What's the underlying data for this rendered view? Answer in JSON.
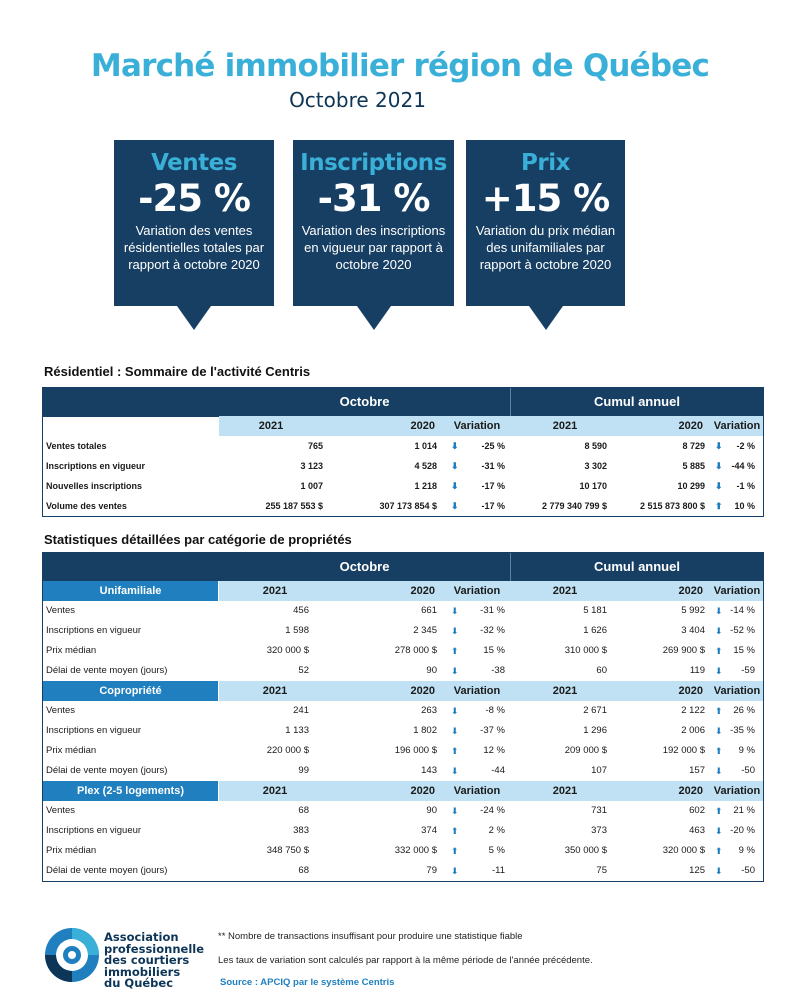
{
  "header": {
    "title": "Marché immobilier région de Québec",
    "subtitle": "Octobre 2021"
  },
  "cards": [
    {
      "title": "Ventes",
      "value": "-25 %",
      "description": "Variation des ventes résidentielles totales par rapport à octobre 2020"
    },
    {
      "title": "Inscriptions",
      "value": "-31 %",
      "description": "Variation des inscriptions en vigueur par rapport à octobre 2020"
    },
    {
      "title": "Prix",
      "value": "+15 %",
      "description": "Variation du prix médian des unifamiliales par rapport à octobre 2020"
    }
  ],
  "summary": {
    "section_title": "Résidentiel : Sommaire de l'activité Centris",
    "group_month": "Octobre",
    "group_ytd": "Cumul annuel",
    "col_2021": "2021",
    "col_2020": "2020",
    "col_var": "Variation",
    "rows": [
      {
        "label": "Ventes totales",
        "m2021": "765",
        "m2020": "1 014",
        "mvar": "-25 %",
        "y2021": "8 590",
        "y2020": "8 729",
        "yvar": "-2 %"
      },
      {
        "label": "Inscriptions en vigueur",
        "m2021": "3 123",
        "m2020": "4 528",
        "mvar": "-31 %",
        "y2021": "3 302",
        "y2020": "5 885",
        "yvar": "-44 %"
      },
      {
        "label": "Nouvelles inscriptions",
        "m2021": "1 007",
        "m2020": "1 218",
        "mvar": "-17 %",
        "y2021": "10 170",
        "y2020": "10 299",
        "yvar": "-1 %"
      },
      {
        "label": "Volume des ventes",
        "m2021": "255 187 553  $",
        "m2020": "307 173 854  $",
        "mvar": "-17 %",
        "y2021": "2 779 340 799  $",
        "y2020": "2 515 873 800  $",
        "yvar": "10 %"
      }
    ]
  },
  "details": {
    "section_title": "Statistiques détaillées par catégorie de propriétés",
    "group_month": "Octobre",
    "group_ytd": "Cumul annuel",
    "categories": [
      {
        "name": "Unifamiliale",
        "col_2021": "2021",
        "col_2020": "2020",
        "col_var": "Variation",
        "rows": [
          {
            "label": "Ventes",
            "m2021": "456",
            "m2020": "661",
            "mvar": "-31 %",
            "y2021": "5 181",
            "y2020": "5 992",
            "yvar": "-14 %"
          },
          {
            "label": "Inscriptions en vigueur",
            "m2021": "1 598",
            "m2020": "2 345",
            "mvar": "-32 %",
            "y2021": "1 626",
            "y2020": "3 404",
            "yvar": "-52 %"
          },
          {
            "label": "Prix médian",
            "m2021": "320 000 $",
            "m2020": "278 000 $",
            "mvar": "15 %",
            "y2021": "310 000 $",
            "y2020": "269 900 $",
            "yvar": "15 %"
          },
          {
            "label": "Délai de vente moyen (jours)",
            "m2021": "52",
            "m2020": "90",
            "mvar": "-38",
            "y2021": "60",
            "y2020": "119",
            "yvar": "-59"
          }
        ]
      },
      {
        "name": "Copropriété",
        "col_2021": "2021",
        "col_2020": "2020",
        "col_var": "Variation",
        "rows": [
          {
            "label": "Ventes",
            "m2021": "241",
            "m2020": "263",
            "mvar": "-8 %",
            "y2021": "2 671",
            "y2020": "2 122",
            "yvar": "26 %"
          },
          {
            "label": "Inscriptions en vigueur",
            "m2021": "1 133",
            "m2020": "1 802",
            "mvar": "-37 %",
            "y2021": "1 296",
            "y2020": "2 006",
            "yvar": "-35 %"
          },
          {
            "label": "Prix médian",
            "m2021": "220 000 $",
            "m2020": "196 000 $",
            "mvar": "12 %",
            "y2021": "209 000 $",
            "y2020": "192 000 $",
            "yvar": "9 %"
          },
          {
            "label": "Délai de vente moyen (jours)",
            "m2021": "99",
            "m2020": "143",
            "mvar": "-44",
            "y2021": "107",
            "y2020": "157",
            "yvar": "-50"
          }
        ]
      },
      {
        "name": "Plex (2-5 logements)",
        "col_2021": "2021",
        "col_2020": "2020",
        "col_var": "Variation",
        "rows": [
          {
            "label": "Ventes",
            "m2021": "68",
            "m2020": "90",
            "mvar": "-24 %",
            "y2021": "731",
            "y2020": "602",
            "yvar": "21 %"
          },
          {
            "label": "Inscriptions en vigueur",
            "m2021": "383",
            "m2020": "374",
            "mvar": "2 %",
            "y2021": "373",
            "y2020": "463",
            "yvar": "-20 %"
          },
          {
            "label": "Prix médian",
            "m2021": "348 750 $",
            "m2020": "332 000 $",
            "mvar": "5 %",
            "y2021": "350 000 $",
            "y2020": "320 000 $",
            "yvar": "9 %"
          },
          {
            "label": "Délai de vente moyen (jours)",
            "m2021": "68",
            "m2020": "79",
            "mvar": "-11",
            "y2021": "75",
            "y2020": "125",
            "yvar": "-50"
          }
        ]
      }
    ]
  },
  "footer": {
    "note1": "** Nombre de transactions insuffisant pour produire une statistique fiable",
    "note2": "Les taux de variation sont calculés par rapport à la même période de l'année précédente.",
    "source": "Source : APCIQ par le système Centris",
    "logo_lines": [
      "Association",
      "professionnelle",
      "des courtiers",
      "immobiliers",
      "du Québec"
    ]
  },
  "colors": {
    "navy": "#173f63",
    "accent": "#3ab0d8",
    "blue": "#1f7fbf",
    "light_blue": "#bfe1f3"
  },
  "icons": {
    "decrease": "arrow-down-icon",
    "increase": "arrow-up-icon"
  }
}
